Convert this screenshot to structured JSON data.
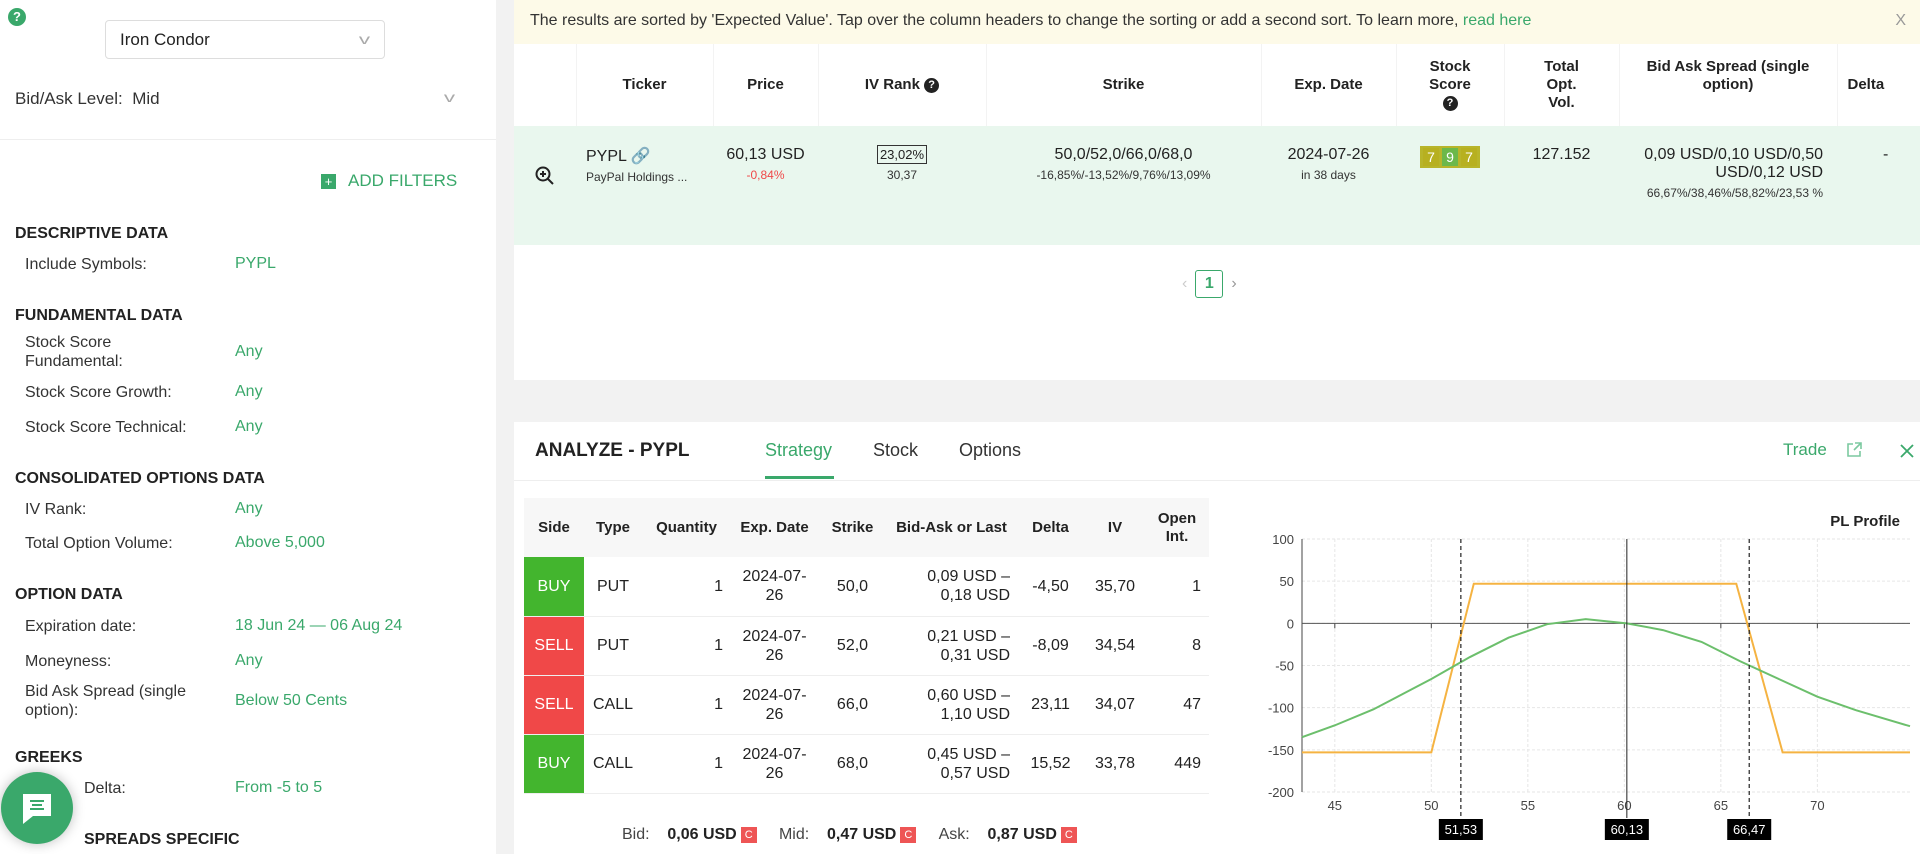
{
  "sidebar": {
    "strategy": "Iron Condor",
    "bidask_label": "Bid/Ask Level:",
    "bidask_value": "Mid",
    "add_filters": "ADD FILTERS",
    "sections": {
      "descriptive": "DESCRIPTIVE DATA",
      "fundamental": "FUNDAMENTAL DATA",
      "consolidated": "CONSOLIDATED OPTIONS DATA",
      "option": "OPTION DATA",
      "greeks": "GREEKS",
      "spreads": "SPREADS SPECIFIC"
    },
    "filters": [
      {
        "label": "Include Symbols:",
        "value": "PYPL"
      },
      {
        "label": "Stock Score Fundamental:",
        "value": "Any"
      },
      {
        "label": "Stock Score Growth:",
        "value": "Any"
      },
      {
        "label": "Stock Score Technical:",
        "value": "Any"
      },
      {
        "label": "IV Rank:",
        "value": "Any"
      },
      {
        "label": "Total Option Volume:",
        "value": "Above 5,000"
      },
      {
        "label": "Expiration date:",
        "value": "18 Jun 24 — 06 Aug 24"
      },
      {
        "label": "Moneyness:",
        "value": "Any"
      },
      {
        "label": "Bid Ask Spread (single option):",
        "value": "Below 50 Cents"
      },
      {
        "label": "Delta:",
        "value": "From -5 to 5"
      }
    ]
  },
  "banner": {
    "text": "The results are sorted by 'Expected Value'. Tap over the column headers to change the sorting or add a second sort. To learn more, ",
    "link": "read here",
    "close": "X"
  },
  "results": {
    "headers": [
      "Ticker",
      "Price",
      "IV Rank",
      "Strike",
      "Exp. Date",
      "Stock Score",
      "Total Opt. Vol.",
      "Bid Ask Spread (single option)",
      "Delta"
    ],
    "row": {
      "ticker": "PYPL",
      "name": "PayPal Holdings ...",
      "price": "60,13 USD",
      "change": "-0,84%",
      "iv_rank": "23,02%",
      "iv": "30,37",
      "strike": "50,0/52,0/66,0/68,0",
      "strike_pct": "-16,85%/-13,52%/9,76%/13,09%",
      "exp": "2024-07-26",
      "exp_days": "in 38 days",
      "scores": [
        "7",
        "9",
        "7"
      ],
      "volume": "127.152",
      "spread": "0,09 USD/0,10 USD/0,50 USD/0,12 USD",
      "spread_pct": "66,67%/38,46%/58,82%/23,53 %",
      "delta": "-"
    },
    "page": "1"
  },
  "analyze": {
    "title": "ANALYZE - PYPL",
    "tabs": [
      "Strategy",
      "Stock",
      "Options"
    ],
    "trade": "Trade",
    "headers": [
      "Side",
      "Type",
      "Quantity",
      "Exp. Date",
      "Strike",
      "Bid-Ask or Last",
      "Delta",
      "IV",
      "Open Int."
    ],
    "legs": [
      {
        "side": "BUY",
        "type": "PUT",
        "qty": "1",
        "exp": "2024-07-26",
        "strike": "50,0",
        "bidask": "0,09 USD – 0,18 USD",
        "delta": "-4,50",
        "iv": "35,70",
        "oi": "1"
      },
      {
        "side": "SELL",
        "type": "PUT",
        "qty": "1",
        "exp": "2024-07-26",
        "strike": "52,0",
        "bidask": "0,21 USD – 0,31 USD",
        "delta": "-8,09",
        "iv": "34,54",
        "oi": "8"
      },
      {
        "side": "SELL",
        "type": "CALL",
        "qty": "1",
        "exp": "2024-07-26",
        "strike": "66,0",
        "bidask": "0,60 USD – 1,10 USD",
        "delta": "23,11",
        "iv": "34,07",
        "oi": "47"
      },
      {
        "side": "BUY",
        "type": "CALL",
        "qty": "1",
        "exp": "2024-07-26",
        "strike": "68,0",
        "bidask": "0,45 USD – 0,57 USD",
        "delta": "15,52",
        "iv": "33,78",
        "oi": "449"
      }
    ],
    "totals": {
      "bid_label": "Bid:",
      "bid": "0,06 USD",
      "mid_label": "Mid:",
      "mid": "0,47 USD",
      "ask_label": "Ask:",
      "ask": "0,87 USD",
      "badge": "C"
    }
  },
  "colors": {
    "accent": "#3aa86b",
    "buy": "#43b52e",
    "sell": "#f04848",
    "pl_expiry": "#f5b342",
    "pl_today": "#6cbf6c"
  },
  "chart_data": {
    "type": "line",
    "title": "PL Profile",
    "xlim": [
      43.3,
      74.8
    ],
    "ylim": [
      -200,
      100
    ],
    "xticks": [
      45,
      50,
      55,
      60,
      65,
      70
    ],
    "yticks": [
      100,
      50,
      0,
      -50,
      -100,
      -150,
      -200
    ],
    "grid": true,
    "series": [
      {
        "color": "#f5b342",
        "points": [
          [
            43.3,
            -153
          ],
          [
            50,
            -153
          ],
          [
            52.2,
            47
          ],
          [
            65.8,
            47
          ],
          [
            68.2,
            -153
          ],
          [
            74.8,
            -153
          ]
        ]
      },
      {
        "color": "#6cbf6c",
        "points": [
          [
            43.3,
            -135
          ],
          [
            45,
            -121
          ],
          [
            47,
            -102
          ],
          [
            49,
            -78
          ],
          [
            50,
            -66
          ],
          [
            52,
            -40
          ],
          [
            54,
            -17
          ],
          [
            56,
            -1
          ],
          [
            58,
            5
          ],
          [
            60.13,
            0
          ],
          [
            62,
            -8
          ],
          [
            64,
            -22
          ],
          [
            66,
            -45
          ],
          [
            68,
            -66
          ],
          [
            70,
            -87
          ],
          [
            72,
            -103
          ],
          [
            74.8,
            -122
          ]
        ]
      }
    ],
    "markers": [
      {
        "x": 51.53,
        "label": "51,53",
        "style": "dashed"
      },
      {
        "x": 60.13,
        "label": "60,13",
        "style": "solid"
      },
      {
        "x": 66.47,
        "label": "66,47",
        "style": "dashed"
      }
    ]
  }
}
